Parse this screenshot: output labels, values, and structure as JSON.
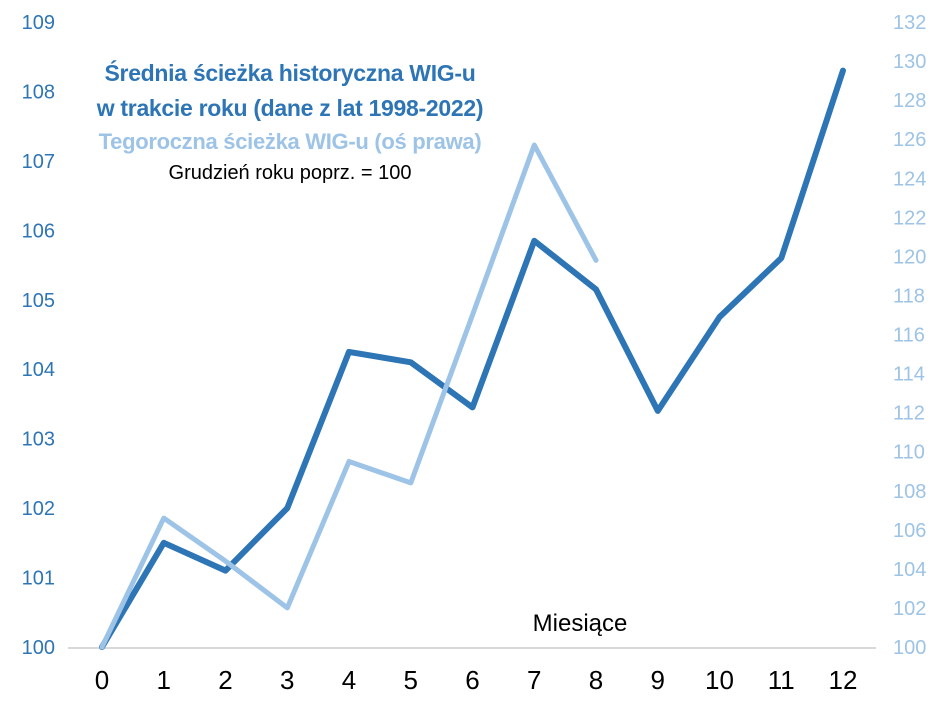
{
  "header": {
    "title_line1": "Średnia ścieżka historyczna WIG-u",
    "title_line2": "w trakcie roku (dane z lat 1998-2022)",
    "secondary_title": "Tegoroczna ścieżka WIG-u (oś prawa)",
    "subtitle": "Grudzień roku poprz. = 100"
  },
  "colors": {
    "primary": "#2E75B6",
    "secondary": "#9DC3E6",
    "axis_line": "#D9D9D9",
    "tick_text": "#000000"
  },
  "chart_data": {
    "type": "line",
    "title": "Średnia ścieżka historyczna WIG-u w trakcie roku (dane z lat 1998-2022)",
    "subtitle": "Grudzień roku poprz. = 100",
    "xlabel": "Miesiące",
    "x": [
      0,
      1,
      2,
      3,
      4,
      5,
      6,
      7,
      8,
      9,
      10,
      11,
      12
    ],
    "series": [
      {
        "name": "Średnia ścieżka historyczna WIG-u w trakcie roku (dane z lat 1998-2022)",
        "axis": "left",
        "color": "#2E75B6",
        "values": [
          100,
          101.5,
          101.1,
          102.0,
          104.25,
          104.1,
          103.45,
          105.85,
          105.15,
          103.4,
          104.75,
          105.6,
          108.3
        ]
      },
      {
        "name": "Tegoroczna ścieżka WIG-u (oś prawa)",
        "axis": "right",
        "color": "#9DC3E6",
        "values": [
          100,
          106.6,
          104.4,
          102.0,
          109.5,
          108.4,
          117.0,
          125.7,
          119.8,
          null,
          null,
          null,
          null
        ]
      }
    ],
    "left_axis": {
      "min": 100,
      "max": 109,
      "step": 1,
      "ticks": [
        100,
        101,
        102,
        103,
        104,
        105,
        106,
        107,
        108,
        109
      ]
    },
    "right_axis": {
      "min": 100,
      "max": 132,
      "step": 2,
      "ticks": [
        100,
        102,
        104,
        106,
        108,
        110,
        112,
        114,
        116,
        118,
        120,
        122,
        124,
        126,
        128,
        130,
        132
      ]
    },
    "grid": false,
    "legend_position": "in-title"
  }
}
